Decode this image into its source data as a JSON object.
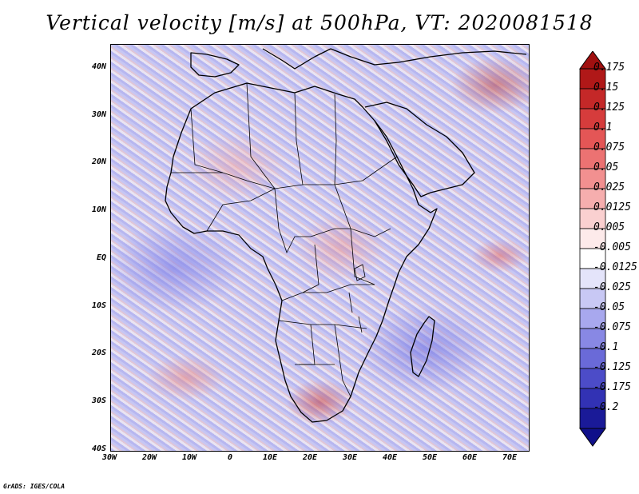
{
  "title": "Vertical velocity [m/s] at 500hPa, VT: 2020081518",
  "footer": "GrADS: IGES/COLA",
  "y_ticks": [
    "40N",
    "30N",
    "20N",
    "10N",
    "EQ",
    "10S",
    "20S",
    "30S",
    "40S"
  ],
  "x_ticks": [
    "30W",
    "20W",
    "10W",
    "0",
    "10E",
    "20E",
    "30E",
    "40E",
    "50E",
    "60E",
    "70E"
  ],
  "colorbar": {
    "labels": [
      "0.175",
      "0.15",
      "0.125",
      "0.1",
      "0.075",
      "0.05",
      "0.025",
      "0.0125",
      "0.005",
      "-0.005",
      "-0.0125",
      "-0.025",
      "-0.05",
      "-0.075",
      "-0.1",
      "-0.125",
      "-0.175",
      "-0.2"
    ],
    "colors": [
      "#b01818",
      "#c42828",
      "#d63c3c",
      "#e45656",
      "#ec7272",
      "#f29090",
      "#f6aeae",
      "#fad0d0",
      "#fdeaea",
      "#ffffff",
      "#e4e4fa",
      "#c8c8f4",
      "#a8a8ee",
      "#8888e4",
      "#6a6ad8",
      "#4c4cc8",
      "#3232b4",
      "#1a1a98"
    ],
    "top_color": "#a01010",
    "bottom_color": "#10108a"
  }
}
